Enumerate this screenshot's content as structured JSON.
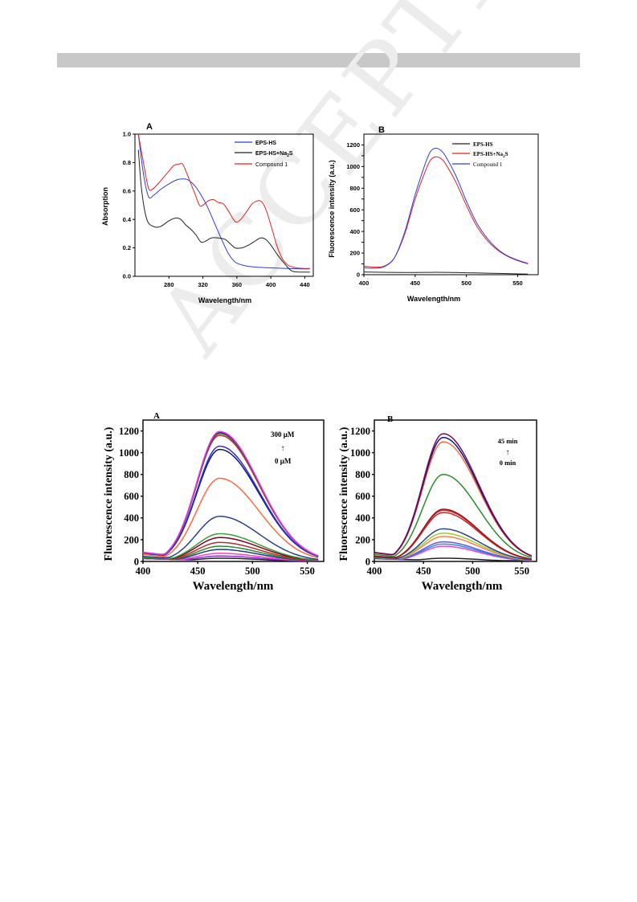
{
  "watermark": "ACCEPTED MANUSCRIPT",
  "chart_data": [
    {
      "panel_label": "A",
      "type": "line",
      "xlabel": "Wavelength/nm",
      "ylabel": "Absorption",
      "xlim": [
        240,
        450
      ],
      "ylim": [
        0,
        1.0
      ],
      "xticks": [
        280,
        320,
        360,
        400,
        440
      ],
      "yticks": [
        0.0,
        0.2,
        0.4,
        0.6,
        0.8,
        1.0
      ],
      "ytick_decimals": 1,
      "legend_position": "top-right",
      "series": [
        {
          "name": "EPS-HS",
          "color": "#2a3fe0",
          "x": [
            244,
            250,
            256,
            262,
            270,
            280,
            290,
            296,
            302,
            310,
            318,
            326,
            334,
            342,
            350,
            358,
            366,
            374,
            382,
            390,
            400,
            410,
            420,
            430,
            440,
            446
          ],
          "y": [
            1.0,
            0.72,
            0.56,
            0.57,
            0.61,
            0.65,
            0.68,
            0.685,
            0.68,
            0.64,
            0.57,
            0.48,
            0.37,
            0.26,
            0.16,
            0.1,
            0.08,
            0.07,
            0.065,
            0.062,
            0.059,
            0.057,
            0.055,
            0.053,
            0.052,
            0.052
          ]
        },
        {
          "name": "EPS-HS+Na2S",
          "color": "#222222",
          "x": [
            244,
            248,
            254,
            262,
            270,
            280,
            288,
            294,
            300,
            306,
            312,
            318,
            324,
            330,
            338,
            346,
            352,
            358,
            366,
            374,
            382,
            388,
            394,
            400,
            408,
            416,
            424,
            432,
            440,
            446
          ],
          "y": [
            0.89,
            0.6,
            0.4,
            0.35,
            0.35,
            0.39,
            0.41,
            0.4,
            0.36,
            0.33,
            0.29,
            0.24,
            0.25,
            0.27,
            0.27,
            0.26,
            0.23,
            0.2,
            0.2,
            0.22,
            0.25,
            0.27,
            0.26,
            0.22,
            0.15,
            0.09,
            0.04,
            0.03,
            0.03,
            0.03
          ]
        },
        {
          "name": "Compound 1",
          "color": "#e0231f",
          "x": [
            244,
            250,
            256,
            262,
            270,
            280,
            286,
            292,
            296,
            300,
            304,
            310,
            316,
            320,
            326,
            332,
            338,
            344,
            350,
            356,
            360,
            366,
            372,
            378,
            384,
            388,
            392,
            396,
            402,
            408,
            414,
            420,
            426,
            432,
            440,
            446
          ],
          "y": [
            1.0,
            0.8,
            0.62,
            0.62,
            0.67,
            0.74,
            0.78,
            0.79,
            0.79,
            0.74,
            0.68,
            0.59,
            0.5,
            0.5,
            0.53,
            0.54,
            0.52,
            0.51,
            0.46,
            0.4,
            0.38,
            0.41,
            0.46,
            0.51,
            0.53,
            0.53,
            0.5,
            0.44,
            0.32,
            0.2,
            0.12,
            0.08,
            0.065,
            0.058,
            0.055,
            0.055
          ]
        }
      ]
    },
    {
      "panel_label": "B",
      "type": "line",
      "xlabel": "Wavelength/nm",
      "ylabel": "Fluorescence  intensity (a.u.)",
      "xlim": [
        400,
        570
      ],
      "ylim": [
        0,
        1300
      ],
      "xticks": [
        400,
        450,
        500,
        550
      ],
      "yticks": [
        0,
        100,
        200,
        300,
        400,
        500,
        600,
        700,
        800,
        900,
        1000,
        1100,
        1200
      ],
      "yticklabels": [
        "0",
        "",
        "200",
        "",
        "400",
        "",
        "600",
        "",
        "800",
        "",
        "1000",
        "",
        "1200"
      ],
      "legend_position": "top-right",
      "series": [
        {
          "name": "EPS-HS",
          "color": "#222222",
          "x": [
            400,
            420,
            440,
            460,
            470,
            480,
            500,
            520,
            540,
            560
          ],
          "y": [
            25,
            22,
            20,
            21,
            22,
            21,
            18,
            14,
            10,
            6
          ]
        },
        {
          "name": "EPS-HS+Na2S",
          "color": "#e0231f",
          "x": [
            400,
            410,
            420,
            430,
            440,
            450,
            460,
            465,
            470,
            475,
            480,
            490,
            500,
            510,
            520,
            530,
            540,
            550,
            560
          ],
          "y": [
            80,
            70,
            80,
            160,
            380,
            700,
            960,
            1060,
            1090,
            1075,
            1020,
            850,
            640,
            450,
            320,
            230,
            170,
            130,
            100
          ]
        },
        {
          "name": "Compound 1",
          "color": "#2a3fe0",
          "x": [
            400,
            410,
            420,
            430,
            440,
            450,
            460,
            465,
            470,
            475,
            480,
            490,
            500,
            510,
            520,
            530,
            540,
            550,
            560
          ],
          "y": [
            65,
            60,
            75,
            160,
            400,
            740,
            1030,
            1140,
            1170,
            1150,
            1090,
            910,
            680,
            480,
            340,
            240,
            175,
            135,
            105
          ]
        }
      ]
    },
    {
      "panel_label": "A",
      "type": "line",
      "xlabel": "Wavelength/nm",
      "ylabel": "Fluorescence intensity (a.u.)",
      "xlim": [
        400,
        565
      ],
      "ylim": [
        0,
        1300
      ],
      "xticks": [
        400,
        450,
        500,
        550
      ],
      "yticks": [
        0,
        200,
        400,
        600,
        800,
        1000,
        1200
      ],
      "annotation_top": "300 μM",
      "annotation_bottom": "0 μM",
      "series_peaks": [
        30,
        50,
        75,
        110,
        140,
        175,
        220,
        255,
        415,
        765,
        1030,
        1060,
        1160,
        1175,
        1185,
        1195
      ],
      "series_colors": [
        "#222222",
        "#8a2be2",
        "#ff3fbf",
        "#1e3a8a",
        "#2a8c2a",
        "#c0282d",
        "#7a0020",
        "#3aa03a",
        "#27408b",
        "#ff6a3d",
        "#101a7a",
        "#3030d0",
        "#d02020",
        "#2a8c2a",
        "#6a0dad",
        "#e040e0"
      ]
    },
    {
      "panel_label": "B",
      "type": "line",
      "xlabel": "Wavelength/nm",
      "ylabel": "Fluorescence intensity (a.u.)",
      "xlim": [
        400,
        565
      ],
      "ylim": [
        0,
        1300
      ],
      "xticks": [
        400,
        450,
        500,
        550
      ],
      "yticks": [
        0,
        200,
        400,
        600,
        800,
        1000,
        1200
      ],
      "annotation_top": "45 min",
      "annotation_bottom": "0 min",
      "series_peaks": [
        30,
        140,
        160,
        180,
        230,
        260,
        300,
        450,
        470,
        480,
        800,
        1100,
        1140,
        1175
      ],
      "series_colors": [
        "#222222",
        "#ff3fbf",
        "#1e90ff",
        "#6a5acd",
        "#ff7f50",
        "#9acd32",
        "#27408b",
        "#c0282d",
        "#e03030",
        "#8b1a1a",
        "#2a8c2a",
        "#ff6a3d",
        "#101a7a",
        "#7a0a5a"
      ]
    }
  ]
}
